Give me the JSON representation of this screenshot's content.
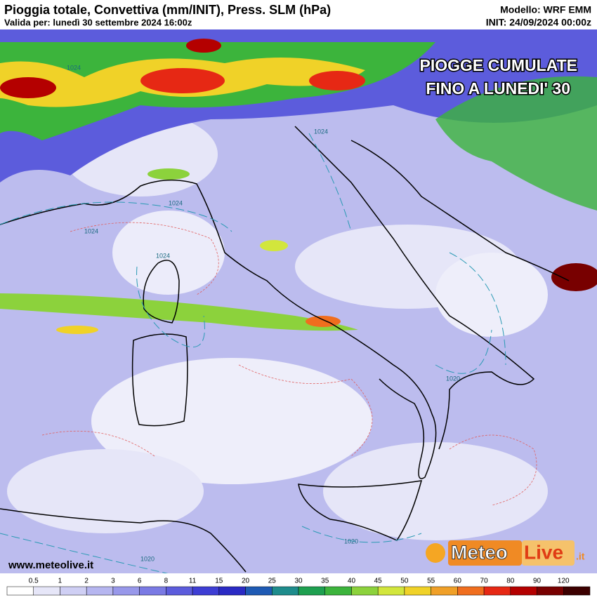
{
  "header": {
    "title": "Pioggia totale, Convettiva (mm/INIT), Press. SLM (hPa)",
    "valid": "Valida per: lunedì 30 settembre 2024 16:00z",
    "model": "Modello: WRF EMM",
    "init": "INIT: 24/09/2024 00:00z"
  },
  "overlay": {
    "lines": [
      "PIOGGE CUMULATE",
      "FINO A LUNEDI' 30"
    ]
  },
  "isobar_labels": [
    "1024",
    "1024",
    "1024",
    "1024",
    "1024",
    "1020",
    "1020",
    "1020"
  ],
  "footer": {
    "website": "www.meteolive.it",
    "logo": {
      "a": "Meteo",
      "b": "Live",
      "c": ".it"
    }
  },
  "legend": {
    "bounds": [
      0.5,
      1,
      2,
      3,
      6,
      8,
      11,
      15,
      20,
      25,
      30,
      35,
      40,
      45,
      50,
      55,
      60,
      70,
      80,
      90,
      120
    ],
    "colors": [
      "#ffffff",
      "#e6e6f8",
      "#cfcff4",
      "#b6b6f0",
      "#9898ea",
      "#7a7ae4",
      "#5c5cdc",
      "#3e3ed4",
      "#2a2ac4",
      "#1e5ab4",
      "#1e8c8c",
      "#1ea050",
      "#3cb43c",
      "#8cd23c",
      "#d2e63c",
      "#f0d228",
      "#f0a028",
      "#f06e1e",
      "#e62814",
      "#b40000",
      "#780000",
      "#3c0000"
    ]
  }
}
